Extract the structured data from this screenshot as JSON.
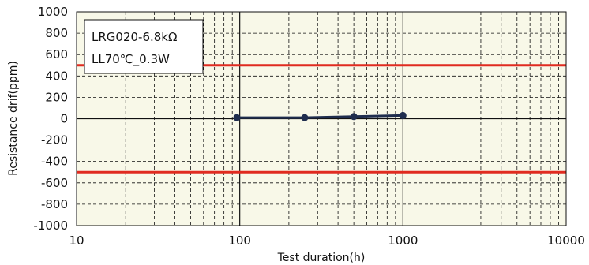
{
  "chart_data": {
    "type": "line",
    "xscale": "log",
    "xlim": [
      10,
      10000
    ],
    "ylim": [
      -1000,
      1000
    ],
    "xlabel": "Test duration(h)",
    "ylabel": "Resistance drif(ppm)",
    "x_tick_labels": [
      "10",
      "100",
      "1000",
      "10000"
    ],
    "y_tick_labels": [
      "1000",
      "800",
      "600",
      "400",
      "200",
      "0",
      "-200",
      "-400",
      "-600",
      "-800",
      "-1000"
    ],
    "annotation_lines": [
      "LRG020-6.8kΩ",
      "LL70℃_0.3W"
    ],
    "grid": true,
    "limit_lines": [
      500,
      -500
    ],
    "series": [
      {
        "x": [
          96,
          250,
          500,
          1000
        ],
        "values": [
          10,
          10,
          20,
          30
        ]
      }
    ],
    "colors": {
      "plot_background": "#f8f8e8",
      "series": "#1f2d4e",
      "limit": "#e02b20",
      "grid": "#111111"
    }
  }
}
